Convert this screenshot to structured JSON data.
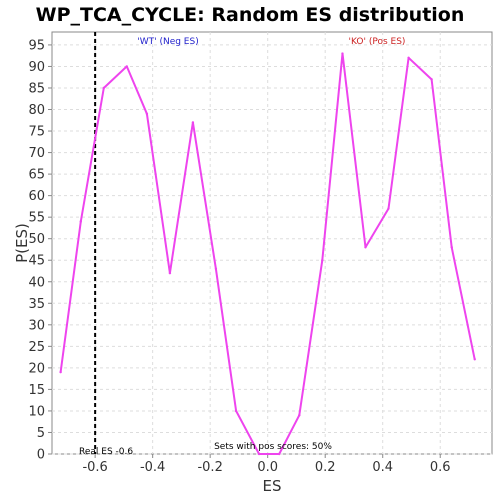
{
  "chart_data": {
    "type": "line",
    "title": "WP_TCA_CYCLE: Random ES distribution",
    "xlabel": "ES",
    "ylabel": "P(ES)",
    "xlim": [
      -0.75,
      0.78
    ],
    "ylim": [
      0,
      98
    ],
    "x_ticks": [
      -0.6,
      -0.4,
      -0.2,
      0.0,
      0.2,
      0.4,
      0.6
    ],
    "x_tick_labels": [
      "-0.6",
      "-0.4",
      "-0.2",
      "0.0",
      "0.2",
      "0.4",
      "0.6"
    ],
    "y_ticks": [
      0,
      5,
      10,
      15,
      20,
      25,
      30,
      35,
      40,
      45,
      50,
      55,
      60,
      65,
      70,
      75,
      80,
      85,
      90,
      95
    ],
    "y_tick_labels": [
      "0",
      "5",
      "10",
      "15",
      "20",
      "25",
      "30",
      "35",
      "40",
      "45",
      "50",
      "55",
      "60",
      "65",
      "70",
      "75",
      "80",
      "85",
      "90",
      "95"
    ],
    "grid": true,
    "series": [
      {
        "color": "#ee44ee",
        "x": [
          -0.72,
          -0.65,
          -0.57,
          -0.49,
          -0.42,
          -0.34,
          -0.26,
          -0.18,
          -0.11,
          -0.03,
          0.04,
          0.11,
          0.19,
          0.26,
          0.34,
          0.42,
          0.49,
          0.57,
          0.64,
          0.72
        ],
        "y": [
          19,
          54,
          85,
          90,
          79,
          42,
          77,
          43,
          10,
          0,
          0,
          9,
          45,
          93,
          48,
          57,
          92,
          87,
          48,
          22
        ]
      }
    ],
    "real_es": -0.6,
    "annotations": {
      "neg_label": "'WT' (Neg ES)",
      "pos_label": "'KO' (Pos ES)",
      "real_es_label": "Real ES -0.6",
      "sets_label": "Sets with pos scores: 50%"
    },
    "colors": {
      "line": "#ee44ee",
      "neg_label": "#2222cc",
      "pos_label": "#cc2222",
      "grid": "#dddddd",
      "axis": "#888888"
    }
  }
}
